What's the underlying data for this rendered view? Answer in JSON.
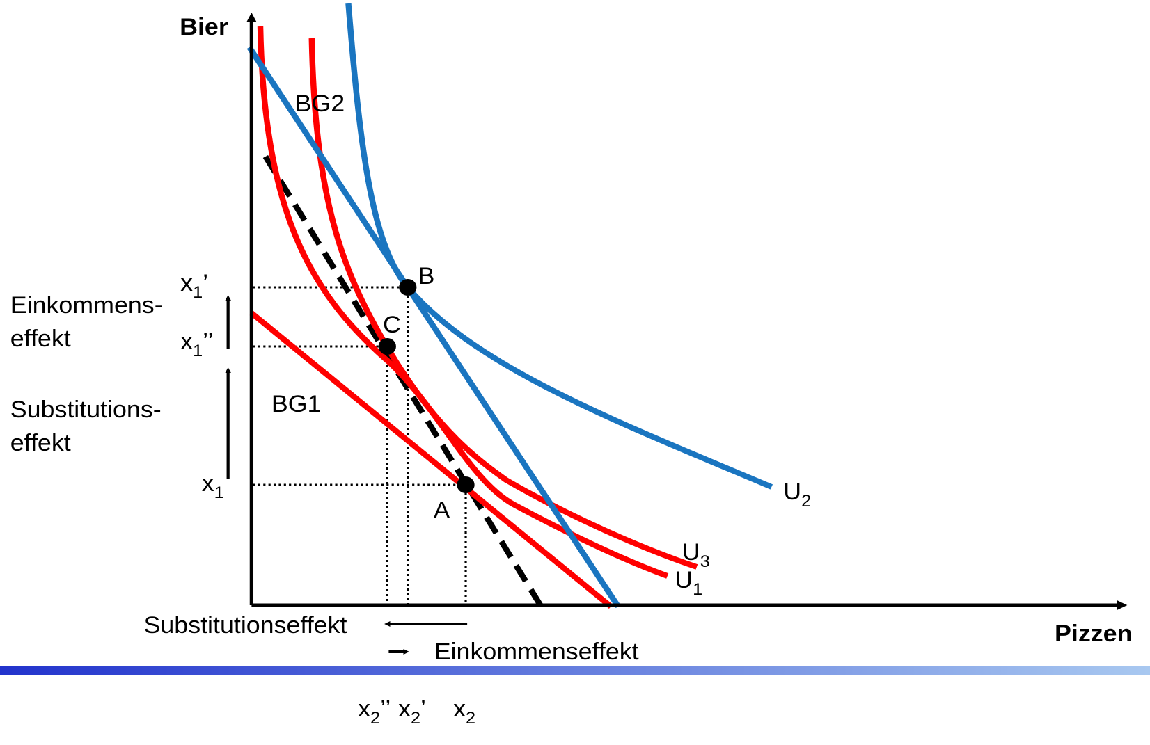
{
  "axes": {
    "y": "Bier",
    "x": "Pizzen"
  },
  "budget_lines": {
    "bg2": "BG2",
    "bg1": "BG1"
  },
  "points": {
    "b": "B",
    "c": "C",
    "a": "A"
  },
  "curves": {
    "u2": {
      "base": "U",
      "sub": "2"
    },
    "u3": {
      "base": "U",
      "sub": "3"
    },
    "u1": {
      "base": "U",
      "sub": "1"
    }
  },
  "y_labels": [
    {
      "base": "x",
      "sub": "1",
      "suffix": "’"
    },
    {
      "base": "x",
      "sub": "1",
      "suffix": "’’"
    },
    {
      "base": "x",
      "sub": "1"
    }
  ],
  "x_labels": [
    {
      "base": "x",
      "sub": "2",
      "suffix": "’’"
    },
    {
      "base": "x",
      "sub": "2",
      "suffix": "’"
    },
    {
      "base": "x",
      "sub": "2"
    }
  ],
  "effects_left": {
    "income": [
      "Einkommens-",
      "effekt"
    ],
    "substitution": [
      "Substitutions-",
      "effekt"
    ]
  },
  "effects_bottom": {
    "substitution": "Substitutionseffekt",
    "income": "Einkommenseffekt"
  }
}
